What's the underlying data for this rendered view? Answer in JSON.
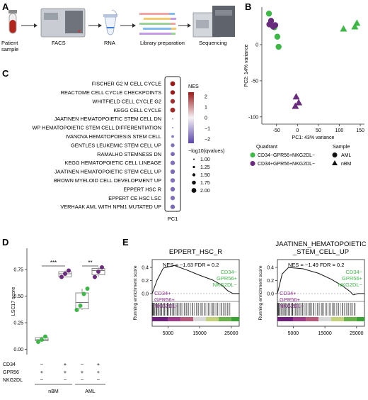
{
  "panels": {
    "a": {
      "label": "A",
      "steps": [
        "Patient\nsample",
        "FACS",
        "RNA",
        "Library preparation",
        "Sequencing"
      ]
    },
    "b": {
      "label": "B",
      "xlabel": "PC1: 43% variance",
      "ylabel": "PC2: 14% variance",
      "legend_quadrant_title": "Quadrant",
      "legend_sample_title": "Sample",
      "legend_quadrant": [
        {
          "label": "CD34−GPR56+NKG2DL−",
          "color": "#3db847"
        },
        {
          "label": "CD34+GPR56+NKG2DL−",
          "color": "#6a2a7e"
        }
      ],
      "legend_sample": [
        {
          "label": "AML",
          "shape": "circle"
        },
        {
          "label": "nBM",
          "shape": "triangle"
        }
      ]
    },
    "c": {
      "label": "C",
      "xlabel": "PC1",
      "nes_title": "NES",
      "nes_ticks": [
        "2",
        "1",
        "0",
        "−1",
        "−2"
      ],
      "size_title": "−log10(qvalues)",
      "size_levels": [
        "1.00",
        "1.25",
        "1.50",
        "1.75",
        "2.00"
      ]
    },
    "d": {
      "label": "D",
      "ylabel": "LSC17 score",
      "row_labels": [
        "CD34",
        "GPR56",
        "NKG2DL"
      ],
      "group_cols": [
        {
          "CD34": "−",
          "GPR56": "+",
          "NKG2DL": "−"
        },
        {
          "CD34": "+",
          "GPR56": "+",
          "NKG2DL": "−"
        },
        {
          "CD34": "−",
          "GPR56": "+",
          "NKG2DL": "−"
        },
        {
          "CD34": "+",
          "GPR56": "+",
          "NKG2DL": "−"
        }
      ],
      "group_names": [
        "nBM",
        "AML"
      ],
      "significance": [
        "***",
        "**"
      ]
    },
    "e": {
      "label": "E",
      "ylabel": "Running enrichment score",
      "plots": [
        {
          "title": "EPPERT_HSC_R",
          "stats": "NES = −1.63 FDR = 0.2",
          "left_annot": [
            "CD34+",
            "GPR56+",
            "NKG2DL−"
          ],
          "right_annot": [
            "CD34−",
            "GPR56+",
            "NKG2DL−"
          ]
        },
        {
          "title": "JAATINEN_HEMATOPOIETIC\n_STEM_CELL_UP",
          "stats": "NES = −1.49 FDR = 0.2",
          "left_annot": [
            "CD34+",
            "GPR56+",
            "NKG2DL−"
          ],
          "right_annot": [
            "CD34−",
            "GPR56+",
            "NKG2DL−"
          ]
        }
      ],
      "colors": {
        "left": "#8b2a8b",
        "right": "#3db847"
      }
    }
  },
  "chart_data": [
    {
      "type": "scatter",
      "panel": "B",
      "xlabel": "PC1: 43% variance",
      "ylabel": "PC2: 14% variance",
      "xlim": [
        -85,
        160
      ],
      "ylim": [
        -110,
        52
      ],
      "xticks": [
        -50,
        0,
        50,
        100,
        150
      ],
      "yticks": [
        0,
        -50,
        -100
      ],
      "series": [
        {
          "name": "CD34−GPR56+NKG2DL−",
          "shape": "circle",
          "points": [
            [
              -68,
              43
            ],
            [
              -62,
              28
            ],
            [
              -55,
              24
            ],
            [
              -48,
              11
            ],
            [
              -45,
              -3
            ]
          ]
        },
        {
          "name": "CD34+GPR56+NKG2DL−",
          "shape": "circle",
          "points": [
            [
              -67,
              28
            ],
            [
              -63,
              33
            ],
            [
              -58,
              25
            ],
            [
              -53,
              27
            ]
          ]
        },
        {
          "name": "CD34−GPR56+NKG2DL−",
          "shape": "triangle",
          "points": [
            [
              110,
              22
            ],
            [
              137,
              25
            ],
            [
              142,
              30
            ]
          ]
        },
        {
          "name": "CD34+GPR56+NKG2DL−",
          "shape": "triangle",
          "points": [
            [
              -3,
              -72
            ],
            [
              3,
              -80
            ],
            [
              -5,
              -85
            ]
          ]
        }
      ]
    },
    {
      "type": "scatter",
      "panel": "C",
      "xlabel": "PC1",
      "nes_range": [
        -2,
        2
      ],
      "terms": [
        {
          "name": "FISCHER G2 M CELL CYCLE",
          "nes": 2.6,
          "q": 2.0
        },
        {
          "name": "REACTOME CELL CYCLE CHECKPOINTS",
          "nes": 2.4,
          "q": 1.9
        },
        {
          "name": "WHITFIELD CELL CYCLE G2",
          "nes": 2.2,
          "q": 1.9
        },
        {
          "name": "KEGG CELL CYCLE",
          "nes": 2.2,
          "q": 2.0
        },
        {
          "name": "JAATINEN HEMATOPOIETIC STEM CELL DN",
          "nes": 1.2,
          "q": 1.0
        },
        {
          "name": "WP HEMATOPOIETIC STEM CELL DIFFERENTIATION",
          "nes": -1.4,
          "q": 1.0
        },
        {
          "name": "IVANOVA HEMATOPOIESIS STEM CELL",
          "nes": -1.6,
          "q": 1.4
        },
        {
          "name": "GENTLES LEUKEMIC STEM CELL UP",
          "nes": -1.8,
          "q": 1.7
        },
        {
          "name": "RAMALHO STEMNESS DN",
          "nes": -1.9,
          "q": 1.8
        },
        {
          "name": "KEGG HEMATOPOIETIC CELL LINEAGE",
          "nes": -1.8,
          "q": 1.9
        },
        {
          "name": "JAATINEN HEMATOPOIETIC STEM CELL UP",
          "nes": -1.9,
          "q": 1.9
        },
        {
          "name": "BROWN MYELOID CELL DEVELOPMENT UP",
          "nes": -1.8,
          "q": 1.9
        },
        {
          "name": "EPPERT HSC R",
          "nes": -1.9,
          "q": 1.9
        },
        {
          "name": "EPPERT CE HSC LSC",
          "nes": -1.8,
          "q": 1.9
        },
        {
          "name": "VERHAAK AML WITH NPM1 MUTATED UP",
          "nes": -1.9,
          "q": 1.9
        }
      ]
    },
    {
      "type": "box",
      "panel": "D",
      "ylabel": "LSC17 score",
      "ylim": [
        -0.05,
        0.95
      ],
      "yticks": [
        0.0,
        0.25,
        0.5,
        0.75
      ],
      "groups": [
        {
          "name": "nBM CD34−",
          "color": "#3db847",
          "points": [
            0.07,
            0.09,
            0.12
          ],
          "q1": 0.08,
          "median": 0.09,
          "q3": 0.11
        },
        {
          "name": "nBM CD34+",
          "color": "#6a2a7e",
          "points": [
            0.68,
            0.71,
            0.74
          ],
          "q1": 0.68,
          "median": 0.71,
          "q3": 0.73
        },
        {
          "name": "AML CD34−",
          "color": "#3db847",
          "points": [
            0.37,
            0.41,
            0.52,
            0.57
          ],
          "q1": 0.38,
          "median": 0.44,
          "q3": 0.53
        },
        {
          "name": "AML CD34+",
          "color": "#6a2a7e",
          "points": [
            0.68,
            0.73,
            0.77
          ],
          "q1": 0.7,
          "median": 0.74,
          "q3": 0.76
        }
      ]
    },
    {
      "type": "line",
      "panel": "E",
      "xticks": [
        5000,
        15000,
        25000
      ],
      "yticks": [
        0.4,
        0.2,
        0.0
      ],
      "plots": [
        {
          "title": "EPPERT_HSC_R",
          "curve": [
            [
              0,
              0
            ],
            [
              1500,
              0.2
            ],
            [
              3500,
              0.39
            ],
            [
              7000,
              0.43
            ],
            [
              11000,
              0.36
            ],
            [
              15000,
              0.28
            ],
            [
              19000,
              0.21
            ],
            [
              22000,
              0.13
            ],
            [
              24000,
              0.04
            ],
            [
              25500,
              0.0
            ],
            [
              27500,
              0.0
            ]
          ]
        },
        {
          "title": "JAATINEN_HEMATOPOIETIC_STEM_CELL_UP",
          "curve": [
            [
              0,
              0
            ],
            [
              1500,
              0.3
            ],
            [
              3500,
              0.4
            ],
            [
              8000,
              0.38
            ],
            [
              13000,
              0.31
            ],
            [
              17000,
              0.22
            ],
            [
              20500,
              0.12
            ],
            [
              23000,
              0.03
            ],
            [
              24000,
              -0.02
            ],
            [
              25500,
              0.0
            ],
            [
              27500,
              0.0
            ]
          ]
        }
      ]
    }
  ]
}
